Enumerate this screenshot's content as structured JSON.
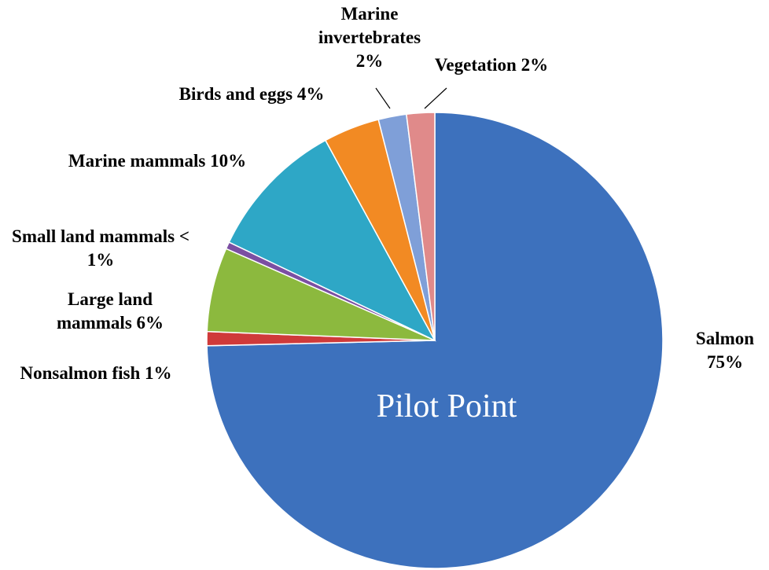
{
  "chart_data": {
    "type": "pie",
    "annotation": "Pilot Point",
    "categories": [
      "Salmon",
      "Nonsalmon fish",
      "Large land mammals",
      "Small land mammals",
      "Marine mammals",
      "Birds and eggs",
      "Marine invertebrates",
      "Vegetation"
    ],
    "values": [
      75,
      1,
      6,
      0.5,
      10,
      4,
      2,
      2
    ],
    "value_labels": [
      "75%",
      "1%",
      "6%",
      "< 1%",
      "10%",
      "4%",
      "2%",
      "2%"
    ],
    "colors": [
      "#3d71bd",
      "#cf3a3a",
      "#8cb93e",
      "#7b4fa2",
      "#2ea7c6",
      "#f28a23",
      "#7f9fd8",
      "#e08a8a"
    ]
  }
}
